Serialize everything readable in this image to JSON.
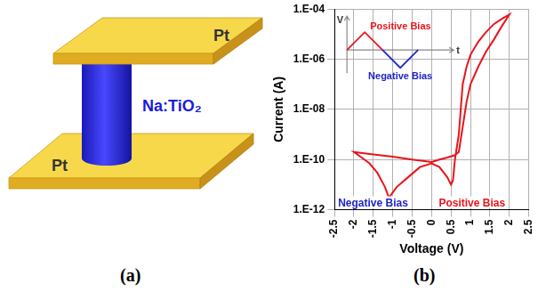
{
  "diagram": {
    "panel_label": "(a)",
    "top_electrode": "Pt",
    "bottom_electrode": "Pt",
    "pillar": "Na:TiO₂"
  },
  "chart_data": {
    "type": "line",
    "panel_label": "(b)",
    "x_label": "Voltage (V)",
    "y_label": "Current (A)",
    "x": [
      0,
      0.2,
      0.4,
      0.6,
      0.7,
      0.8,
      0.9,
      1.0,
      1.2,
      1.4,
      1.6,
      1.8,
      2.0,
      1.8,
      1.6,
      1.4,
      1.2,
      1.0,
      0.9,
      0.8,
      0.75,
      0.7,
      0.6,
      0.55,
      0.5,
      0.4,
      0.2,
      0,
      -0.3,
      -0.6,
      -0.9,
      -1.1,
      -1.2,
      -1.4,
      -1.6,
      -1.8,
      -2.0,
      -1.5,
      -1.0,
      -0.5,
      0
    ],
    "values": [
      8e-11,
      1e-10,
      1.2e-10,
      1.5e-10,
      2e-10,
      2e-09,
      2e-08,
      1e-07,
      5e-07,
      2e-06,
      6e-06,
      2e-05,
      6e-05,
      4e-05,
      2.5e-05,
      1.2e-05,
      5e-06,
      1.5e-06,
      5e-07,
      1e-07,
      1e-08,
      1e-09,
      1e-10,
      1.5e-11,
      1e-11,
      2e-11,
      5e-11,
      7e-11,
      5e-11,
      2e-11,
      8e-12,
      3e-12,
      8e-12,
      3e-11,
      7e-11,
      1.2e-10,
      2e-10,
      1.6e-10,
      1.3e-10,
      1e-10,
      8e-11
    ],
    "color": "#e8141c",
    "marker": "none",
    "log": "y",
    "grid": true,
    "xlim": [
      -2.5,
      2.5
    ],
    "xticks": [
      -2.5,
      -2,
      -1.5,
      -1,
      -0.5,
      0,
      0.5,
      1,
      1.5,
      2,
      2.5
    ],
    "ylim": [
      1e-12,
      0.0001
    ],
    "yticks": [
      {
        "value": 1e-12,
        "label": "1.E-12"
      },
      {
        "value": 1e-10,
        "label": "1.E-10"
      },
      {
        "value": 1e-08,
        "label": "1.E-08"
      },
      {
        "value": 1e-06,
        "label": "1.E-06"
      },
      {
        "value": 0.0001,
        "label": "1.E-04"
      }
    ],
    "annotations": [
      {
        "text": "Negative Bias",
        "color": "#1f24c8"
      },
      {
        "text": "Positive Bias",
        "color": "#e8141c"
      }
    ],
    "inset": {
      "axis_labels": [
        "V",
        "t"
      ],
      "labels": [
        {
          "text": "Positive Bias",
          "color": "#e8141c"
        },
        {
          "text": "Negative Bias",
          "color": "#1f24c8"
        }
      ]
    }
  }
}
